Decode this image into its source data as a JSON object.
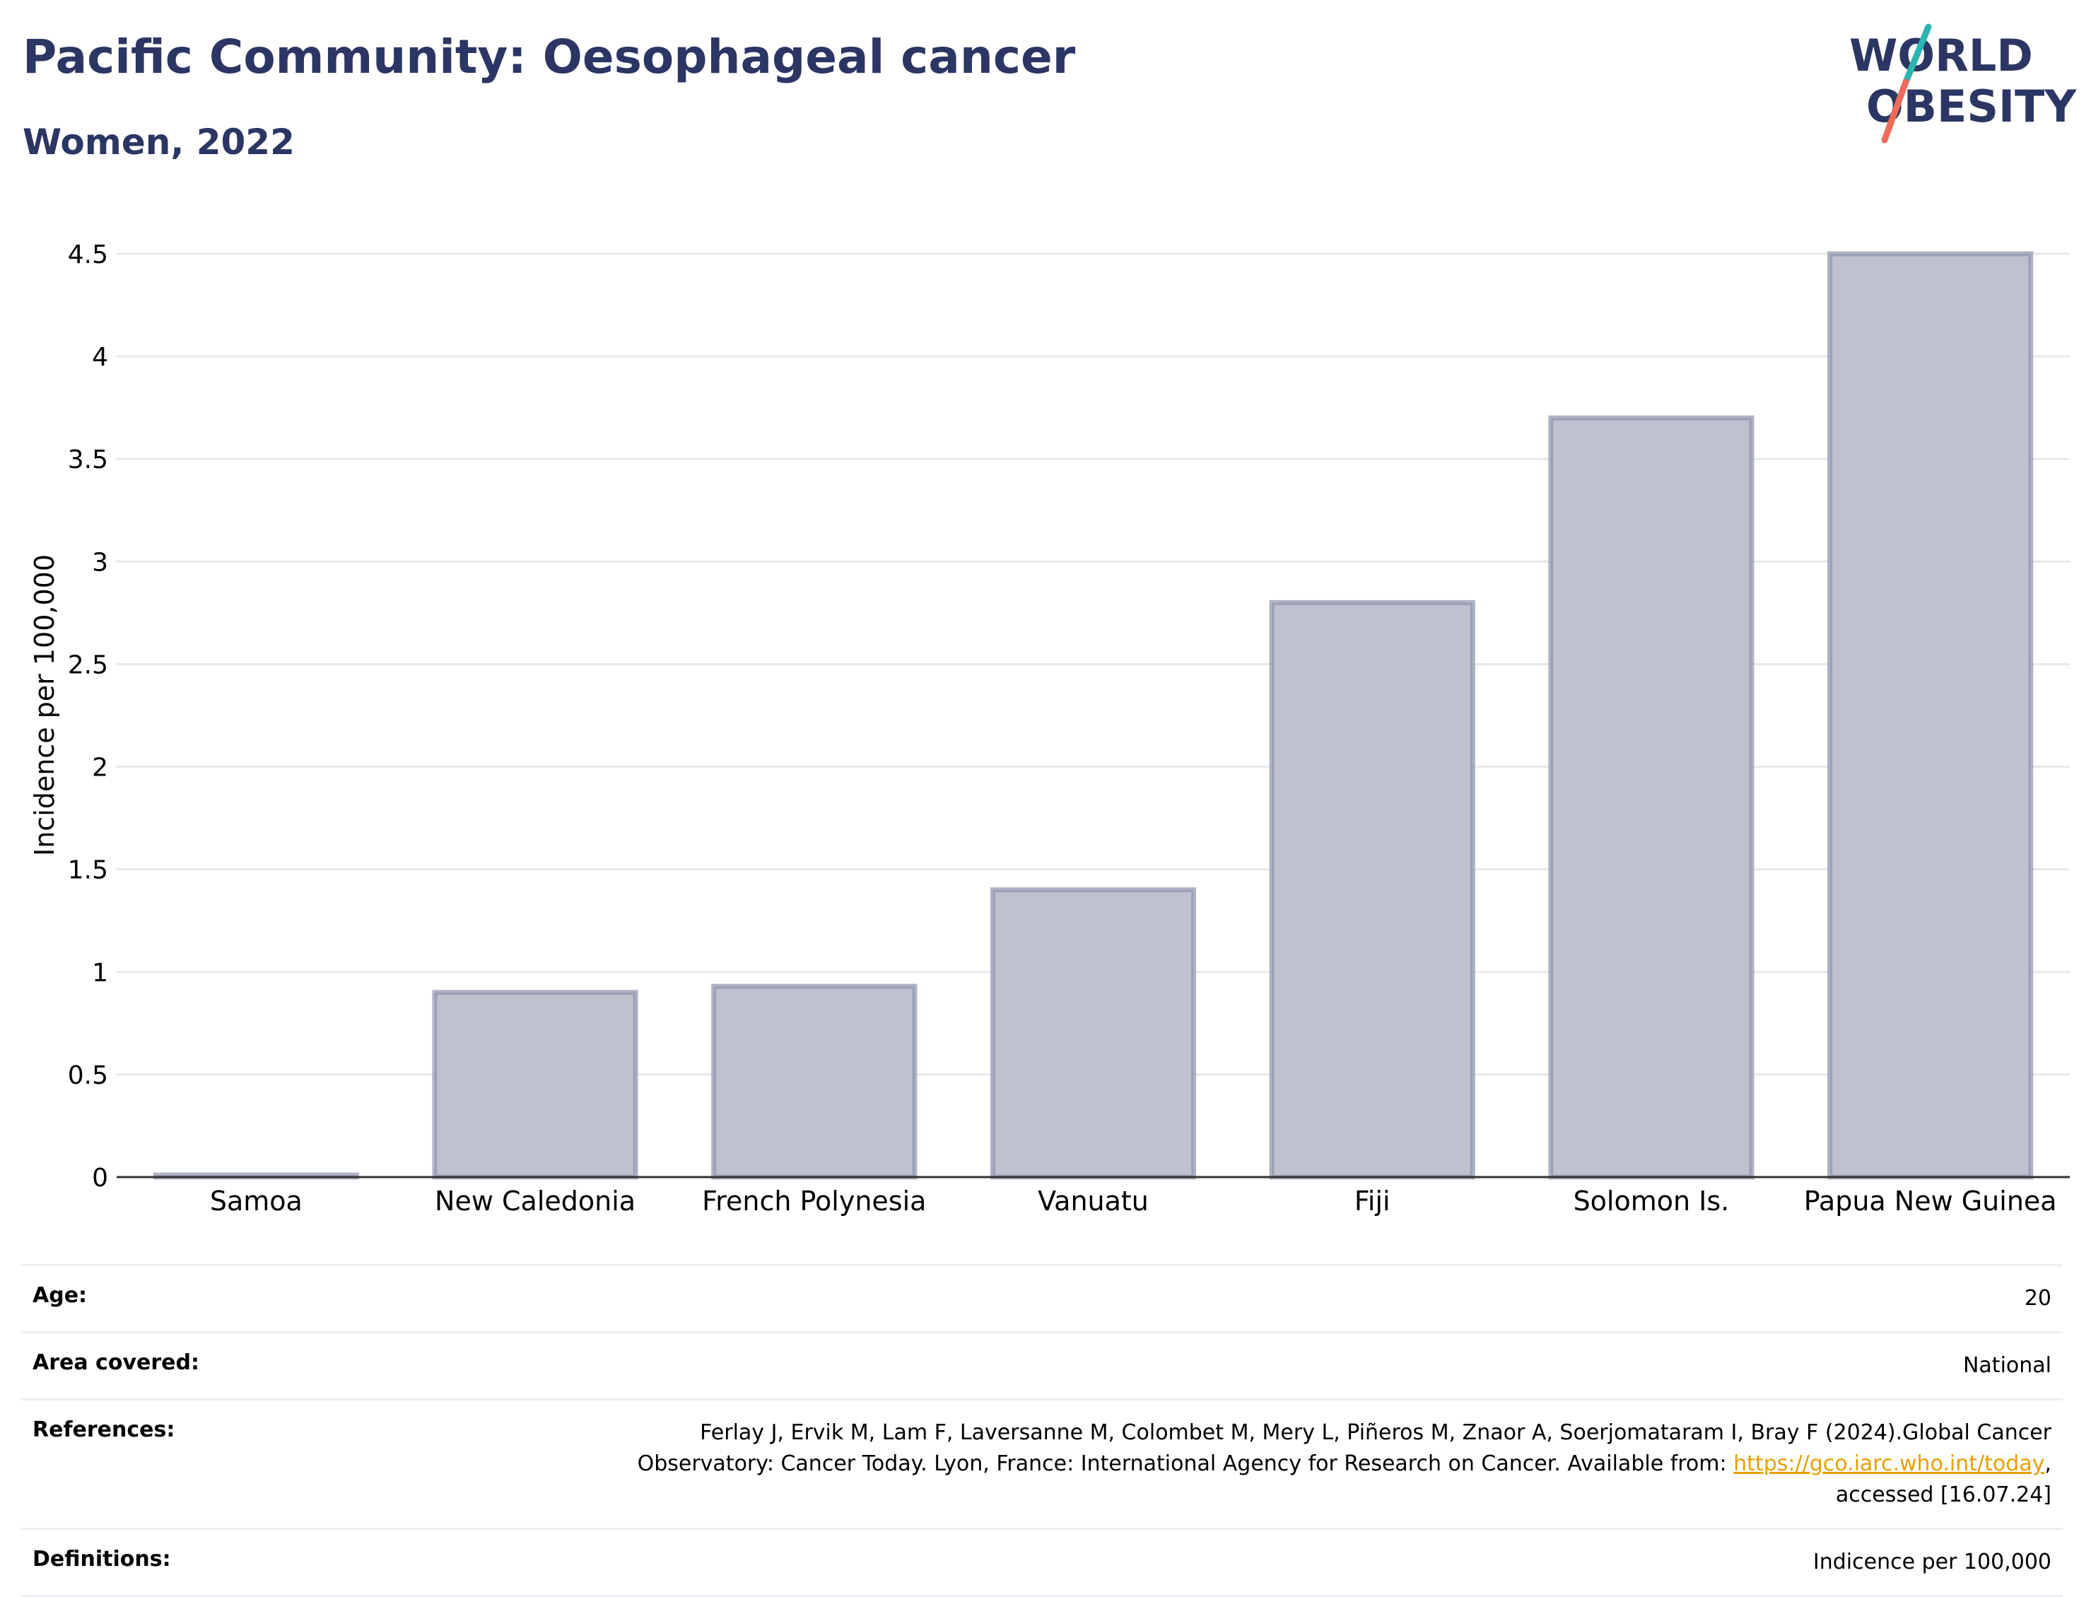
{
  "title": "Pacific Community: Oesophageal cancer",
  "subtitle": "Women, 2022",
  "logo": {
    "line1": "WORLD",
    "line2": "OBESITY",
    "text_color": "#2b3664",
    "slash_colors": [
      "#2bb5b0",
      "#ef6b5a"
    ]
  },
  "chart_data": {
    "type": "bar",
    "categories": [
      "Samoa",
      "New Caledonia",
      "French Polynesia",
      "Vanuatu",
      "Fiji",
      "Solomon Is.",
      "Papua New Guinea"
    ],
    "values": [
      0.01,
      0.9,
      0.93,
      1.4,
      2.8,
      3.7,
      4.5
    ],
    "ylabel": "Incidence per 100,000",
    "xlabel": "",
    "ylim": [
      0,
      4.6
    ],
    "yticks": [
      0,
      0.5,
      1,
      1.5,
      2,
      2.5,
      3,
      3.5,
      4,
      4.5
    ],
    "ytick_labels": [
      "0",
      "0.5",
      "1",
      "1.5",
      "2",
      "2.5",
      "3",
      "3.5",
      "4",
      "4.5"
    ],
    "grid": true,
    "bar_color": "#bec2cf",
    "bar_edge_color": "#8d93ab"
  },
  "meta": {
    "age_label": "Age:",
    "age_value": "20",
    "area_label": "Area covered:",
    "area_value": "National",
    "references_label": "References:",
    "references_line1": "Ferlay J, Ervik M, Lam F, Laversanne M, Colombet M, Mery L, Piñeros M, Znaor A, Soerjomataram I, Bray F (2024).Global Cancer",
    "references_line2_pre": "Observatory: Cancer Today. Lyon, France: International Agency for Research on Cancer. Available from: ",
    "references_link": "https://gco.iarc.who.int/today",
    "references_line2_post": ",",
    "references_line3": "accessed [16.07.24]",
    "definitions_label": "Definitions:",
    "definitions_value": "Indicence per 100,000"
  }
}
